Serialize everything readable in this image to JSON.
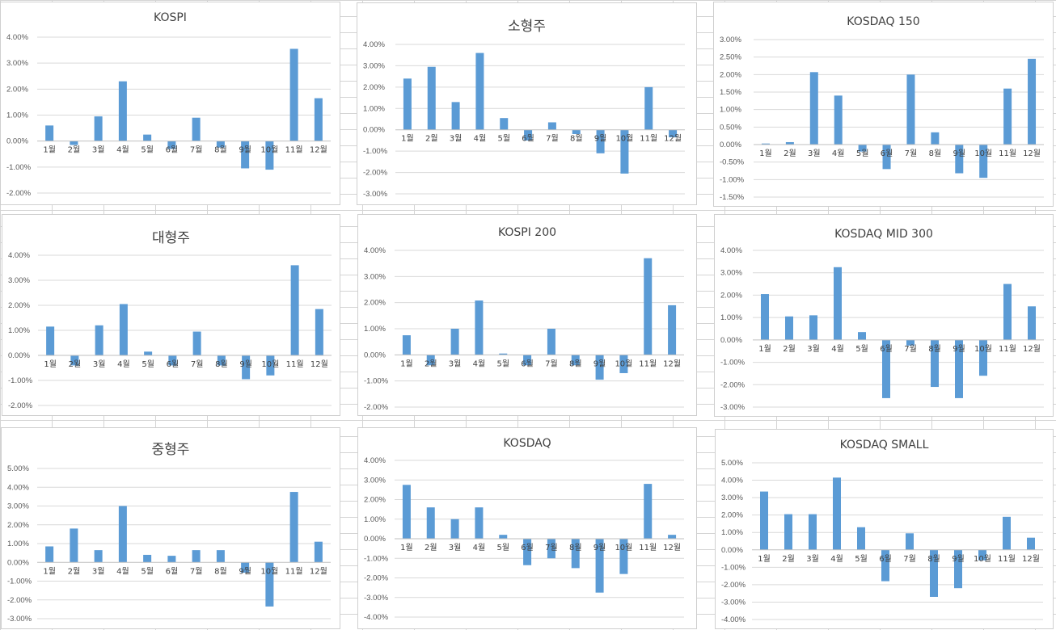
{
  "colors": {
    "bar": "#5b9bd5",
    "grid": "#d9d9d9",
    "axis": "#bfbfbf"
  },
  "months": [
    "1월",
    "2월",
    "3월",
    "4월",
    "5월",
    "6월",
    "7월",
    "8월",
    "9월",
    "10월",
    "11월",
    "12월"
  ],
  "chart_data": [
    {
      "type": "bar",
      "title": "KOSPI",
      "ylim": [
        -2,
        4
      ],
      "yticks": [
        -2,
        -1,
        0,
        1,
        2,
        3,
        4
      ],
      "tick_labels": [
        "-2.00%",
        "-1.00%",
        "0.00%",
        "1.00%",
        "2.00%",
        "3.00%",
        "4.00%"
      ],
      "values": [
        0.6,
        -0.15,
        0.95,
        2.3,
        0.25,
        -0.3,
        0.9,
        -0.25,
        -1.05,
        -1.1,
        3.55,
        1.65
      ]
    },
    {
      "type": "bar",
      "title": "소형주",
      "ylim": [
        -3,
        4
      ],
      "yticks": [
        -3,
        -2,
        -1,
        0,
        1,
        2,
        3,
        4
      ],
      "tick_labels": [
        "-3.00%",
        "-2.00%",
        "-1.00%",
        "0.00%",
        "1.00%",
        "2.00%",
        "3.00%",
        "4.00%"
      ],
      "values": [
        2.4,
        2.95,
        1.3,
        3.6,
        0.55,
        -0.5,
        0.35,
        -0.2,
        -1.1,
        -2.05,
        2.0,
        -0.35
      ]
    },
    {
      "type": "bar",
      "title": "KOSDAQ 150",
      "ylim": [
        -1.5,
        3
      ],
      "yticks": [
        -1.5,
        -1,
        -0.5,
        0,
        0.5,
        1,
        1.5,
        2,
        2.5,
        3
      ],
      "tick_labels": [
        "-1.50%",
        "-1.00%",
        "-0.50%",
        "0.00%",
        "0.50%",
        "1.00%",
        "1.50%",
        "2.00%",
        "2.50%",
        "3.00%"
      ],
      "values": [
        0.03,
        0.07,
        2.07,
        1.4,
        -0.2,
        -0.7,
        2.0,
        0.35,
        -0.82,
        -0.95,
        1.6,
        2.45
      ]
    },
    {
      "type": "bar",
      "title": "대형주",
      "ylim": [
        -2,
        4
      ],
      "yticks": [
        -2,
        -1,
        0,
        1,
        2,
        3,
        4
      ],
      "tick_labels": [
        "-2.00%",
        "-1.00%",
        "0.00%",
        "1.00%",
        "2.00%",
        "3.00%",
        "4.00%"
      ],
      "values": [
        1.15,
        -0.4,
        1.2,
        2.05,
        0.15,
        -0.4,
        0.95,
        -0.4,
        -0.95,
        -0.8,
        3.6,
        1.85
      ]
    },
    {
      "type": "bar",
      "title": "KOSPI 200",
      "ylim": [
        -2,
        4
      ],
      "yticks": [
        -2,
        -1,
        0,
        1,
        2,
        3,
        4
      ],
      "tick_labels": [
        "-2.00%",
        "-1.00%",
        "0.00%",
        "1.00%",
        "2.00%",
        "3.00%",
        "4.00%"
      ],
      "values": [
        0.75,
        -0.4,
        1.0,
        2.08,
        0.05,
        -0.4,
        1.0,
        -0.4,
        -0.95,
        -0.7,
        3.7,
        1.9
      ]
    },
    {
      "type": "bar",
      "title": "KOSDAQ MID 300",
      "ylim": [
        -3,
        4
      ],
      "yticks": [
        -3,
        -2,
        -1,
        0,
        1,
        2,
        3,
        4
      ],
      "tick_labels": [
        "-3.00%",
        "-2.00%",
        "-1.00%",
        "0.00%",
        "1.00%",
        "2.00%",
        "3.00%",
        "4.00%"
      ],
      "values": [
        2.05,
        1.05,
        1.1,
        3.25,
        0.35,
        -2.6,
        -0.25,
        -2.1,
        -2.6,
        -1.6,
        2.5,
        1.5
      ]
    },
    {
      "type": "bar",
      "title": "중형주",
      "ylim": [
        -3,
        5
      ],
      "yticks": [
        -3,
        -2,
        -1,
        0,
        1,
        2,
        3,
        4,
        5
      ],
      "tick_labels": [
        "-3.00%",
        "-2.00%",
        "-1.00%",
        "0.00%",
        "1.00%",
        "2.00%",
        "3.00%",
        "4.00%",
        "5.00%"
      ],
      "values": [
        0.85,
        1.8,
        0.65,
        3.0,
        0.4,
        0.35,
        0.65,
        0.65,
        -0.55,
        -2.35,
        3.75,
        1.1
      ]
    },
    {
      "type": "bar",
      "title": "KOSDAQ",
      "ylim": [
        -4,
        4
      ],
      "yticks": [
        -4,
        -3,
        -2,
        -1,
        0,
        1,
        2,
        3,
        4
      ],
      "tick_labels": [
        "-4.00%",
        "-3.00%",
        "-2.00%",
        "-1.00%",
        "0.00%",
        "1.00%",
        "2.00%",
        "3.00%",
        "4.00%"
      ],
      "values": [
        2.75,
        1.6,
        1.0,
        1.6,
        0.2,
        -1.35,
        -1.0,
        -1.5,
        -2.75,
        -1.8,
        2.8,
        0.2
      ]
    },
    {
      "type": "bar",
      "title": "KOSDAQ SMALL",
      "ylim": [
        -4,
        5
      ],
      "yticks": [
        -4,
        -3,
        -2,
        -1,
        0,
        1,
        2,
        3,
        4,
        5
      ],
      "tick_labels": [
        "-4.00%",
        "-3.00%",
        "-2.00%",
        "-1.00%",
        "0.00%",
        "1.00%",
        "2.00%",
        "3.00%",
        "4.00%",
        "5.00%"
      ],
      "values": [
        3.35,
        2.05,
        2.05,
        4.15,
        1.3,
        -1.8,
        0.95,
        -2.7,
        -2.2,
        -0.6,
        1.9,
        0.7
      ]
    }
  ]
}
